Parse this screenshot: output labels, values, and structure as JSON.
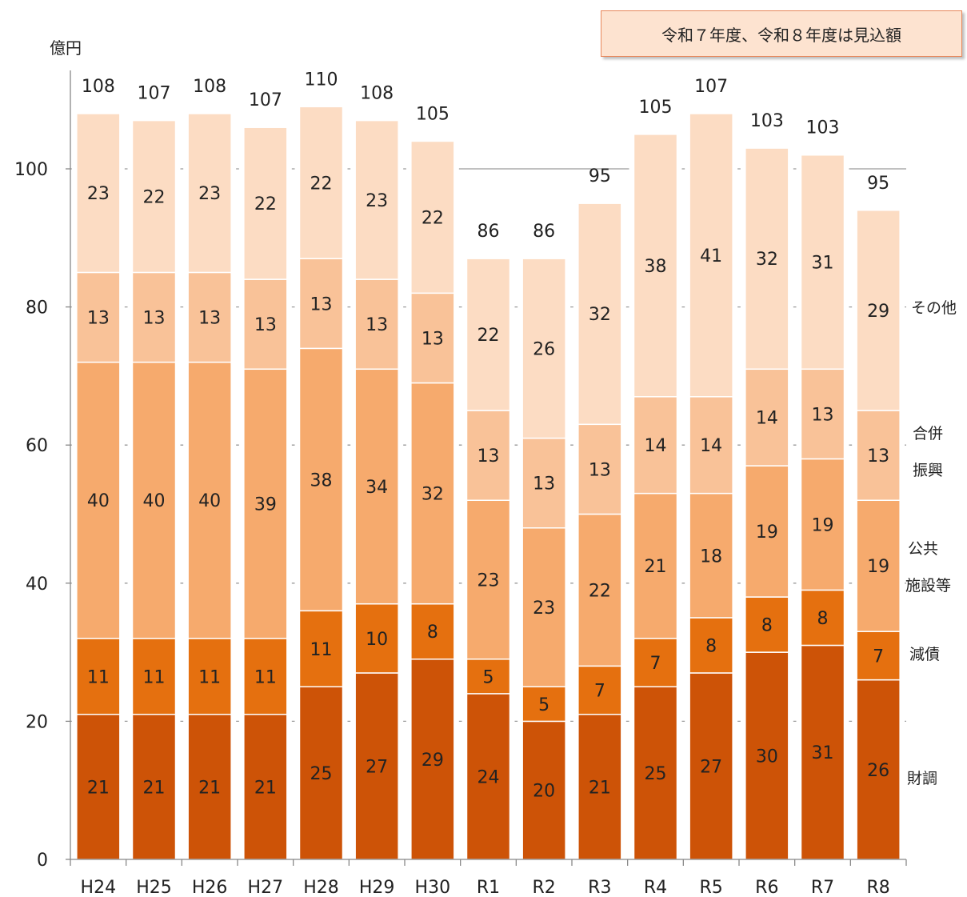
{
  "note": "令和７年度、令和８年度は見込額",
  "chart_data": {
    "type": "bar",
    "stacked": true,
    "unit": "億円",
    "categories": [
      "H24",
      "H25",
      "H26",
      "H27",
      "H28",
      "H29",
      "H30",
      "R1",
      "R2",
      "R3",
      "R4",
      "R5",
      "R6",
      "R7",
      "R8"
    ],
    "ylim": [
      0,
      120
    ],
    "yticks": [
      "0",
      "20",
      "40",
      "60",
      "80",
      "100"
    ],
    "grid": true,
    "series": [
      {
        "name": "財調",
        "color": "#cd5307",
        "values": [
          21,
          21,
          21,
          21,
          25,
          27,
          29,
          24,
          20,
          21,
          25,
          27,
          30,
          31,
          26
        ]
      },
      {
        "name": "減債",
        "color": "#e5700f",
        "values": [
          11,
          11,
          11,
          11,
          11,
          10,
          8,
          5,
          5,
          7,
          7,
          8,
          8,
          8,
          7
        ]
      },
      {
        "name": "公共施設等",
        "color": "#f6aa6d",
        "values": [
          40,
          40,
          40,
          39,
          38,
          34,
          32,
          23,
          23,
          22,
          21,
          18,
          19,
          19,
          19
        ]
      },
      {
        "name": "合併振興",
        "color": "#f9c298",
        "values": [
          13,
          13,
          13,
          13,
          13,
          13,
          13,
          13,
          13,
          13,
          14,
          14,
          14,
          13,
          13
        ]
      },
      {
        "name": "その他",
        "color": "#fcdcc3",
        "values": [
          23,
          22,
          23,
          22,
          22,
          23,
          22,
          22,
          26,
          32,
          38,
          41,
          32,
          31,
          29
        ]
      }
    ],
    "totals": [
      "108",
      "107",
      "108",
      "107",
      "110",
      "108",
      "105",
      "86",
      "86",
      "95",
      "105",
      "107",
      "103",
      "103",
      "95"
    ],
    "series_labels": {
      "財調": "財調",
      "減債": "減債",
      "公共1": "公共",
      "公共2": "施設等",
      "合併1": "合併",
      "合併2": "振興",
      "その他": "その他"
    }
  }
}
